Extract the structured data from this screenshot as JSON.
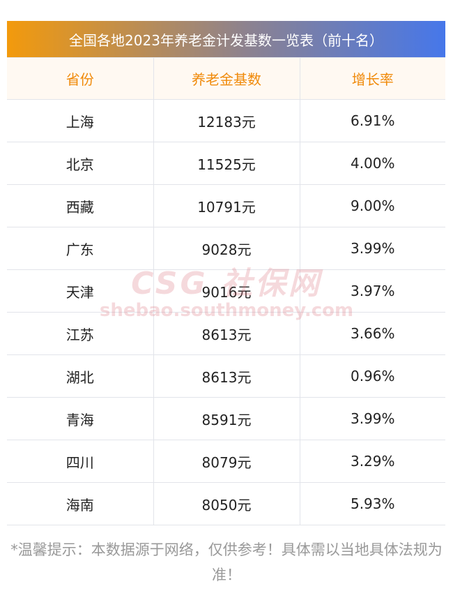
{
  "title": "全国各地2023年养老金计发基数一览表（前十名）",
  "headers": [
    "省份",
    "养老金基数",
    "增长率"
  ],
  "rows": [
    [
      "上海",
      "12183元",
      "6.91%"
    ],
    [
      "北京",
      "11525元",
      "4.00%"
    ],
    [
      "西藏",
      "10791元",
      "9.00%"
    ],
    [
      "广东",
      "9028元",
      "3.99%"
    ],
    [
      "天津",
      "9016元",
      "3.97%"
    ],
    [
      "江苏",
      "8613元",
      "3.66%"
    ],
    [
      "湖北",
      "8613元",
      "0.96%"
    ],
    [
      "青海",
      "8591元",
      "3.99%"
    ],
    [
      "四川",
      "8079元",
      "3.29%"
    ],
    [
      "海南",
      "8050元",
      "5.93%"
    ]
  ],
  "watermark": {
    "logo": "CSG 社保网",
    "url": "shebao.southmoney.com"
  },
  "footer": "*温馨提示：本数据源于网络，仅供参考！具体需以当地具体法规为准！",
  "colors": {
    "header_text": "#f08a0a",
    "gradient_start": "#f39a0c",
    "gradient_end": "#4677ea"
  }
}
